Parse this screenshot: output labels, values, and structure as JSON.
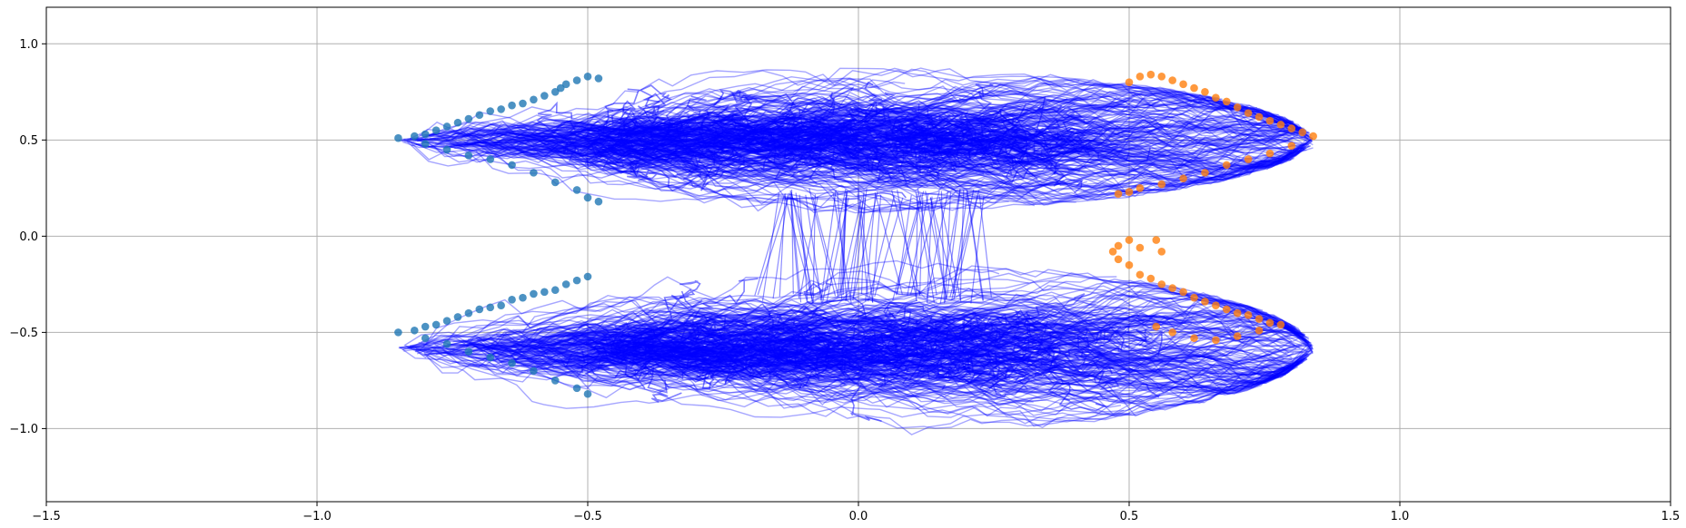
{
  "chart_data": {
    "type": "scatter",
    "title": "",
    "xlabel": "",
    "ylabel": "",
    "xlim": [
      -1.5,
      1.5
    ],
    "ylim": [
      -1.38,
      1.19
    ],
    "grid": true,
    "legend": "none",
    "x_ticks": [
      -1.5,
      -1.0,
      -0.5,
      0.0,
      0.5,
      1.0,
      1.5
    ],
    "x_tick_labels": [
      "−1.5",
      "−1.0",
      "−0.5",
      "0.0",
      "0.5",
      "1.0",
      "1.5"
    ],
    "y_ticks": [
      1.0,
      0.5,
      0.0,
      -0.5,
      -1.0
    ],
    "y_tick_labels": [
      "1.0",
      "0.5",
      "0.0",
      "−0.5",
      "−1.0"
    ],
    "colors": {
      "trajectories": "#0000ff",
      "start_points": "#1f77b4",
      "end_points": "#ff7f0e",
      "grid": "#b0b0b0",
      "axes": "#000000"
    },
    "series": [
      {
        "type": "scatter",
        "color": "#1f77b4",
        "points": [
          [
            -0.85,
            0.51
          ],
          [
            -0.82,
            0.52
          ],
          [
            -0.8,
            0.53
          ],
          [
            -0.78,
            0.55
          ],
          [
            -0.76,
            0.57
          ],
          [
            -0.74,
            0.59
          ],
          [
            -0.72,
            0.61
          ],
          [
            -0.7,
            0.63
          ],
          [
            -0.68,
            0.65
          ],
          [
            -0.66,
            0.66
          ],
          [
            -0.64,
            0.68
          ],
          [
            -0.62,
            0.69
          ],
          [
            -0.6,
            0.71
          ],
          [
            -0.58,
            0.73
          ],
          [
            -0.56,
            0.75
          ],
          [
            -0.55,
            0.77
          ],
          [
            -0.54,
            0.79
          ],
          [
            -0.52,
            0.81
          ],
          [
            -0.5,
            0.83
          ],
          [
            -0.48,
            0.82
          ],
          [
            -0.8,
            0.48
          ],
          [
            -0.76,
            0.45
          ],
          [
            -0.72,
            0.42
          ],
          [
            -0.68,
            0.4
          ],
          [
            -0.64,
            0.37
          ],
          [
            -0.6,
            0.33
          ],
          [
            -0.56,
            0.28
          ],
          [
            -0.52,
            0.24
          ],
          [
            -0.5,
            0.2
          ],
          [
            -0.48,
            0.18
          ],
          [
            -0.85,
            -0.5
          ],
          [
            -0.82,
            -0.49
          ],
          [
            -0.8,
            -0.47
          ],
          [
            -0.78,
            -0.46
          ],
          [
            -0.76,
            -0.44
          ],
          [
            -0.74,
            -0.42
          ],
          [
            -0.72,
            -0.4
          ],
          [
            -0.7,
            -0.38
          ],
          [
            -0.68,
            -0.37
          ],
          [
            -0.66,
            -0.36
          ],
          [
            -0.64,
            -0.33
          ],
          [
            -0.62,
            -0.32
          ],
          [
            -0.6,
            -0.3
          ],
          [
            -0.58,
            -0.29
          ],
          [
            -0.56,
            -0.28
          ],
          [
            -0.54,
            -0.25
          ],
          [
            -0.52,
            -0.23
          ],
          [
            -0.5,
            -0.21
          ],
          [
            -0.8,
            -0.53
          ],
          [
            -0.76,
            -0.56
          ],
          [
            -0.72,
            -0.6
          ],
          [
            -0.68,
            -0.63
          ],
          [
            -0.64,
            -0.66
          ],
          [
            -0.6,
            -0.7
          ],
          [
            -0.56,
            -0.75
          ],
          [
            -0.52,
            -0.79
          ],
          [
            -0.5,
            -0.82
          ]
        ]
      },
      {
        "type": "scatter",
        "color": "#ff7f0e",
        "points": [
          [
            0.84,
            0.52
          ],
          [
            0.82,
            0.54
          ],
          [
            0.8,
            0.56
          ],
          [
            0.78,
            0.58
          ],
          [
            0.76,
            0.6
          ],
          [
            0.74,
            0.62
          ],
          [
            0.72,
            0.64
          ],
          [
            0.7,
            0.67
          ],
          [
            0.68,
            0.7
          ],
          [
            0.66,
            0.72
          ],
          [
            0.64,
            0.75
          ],
          [
            0.62,
            0.77
          ],
          [
            0.6,
            0.79
          ],
          [
            0.58,
            0.81
          ],
          [
            0.56,
            0.83
          ],
          [
            0.54,
            0.84
          ],
          [
            0.52,
            0.83
          ],
          [
            0.5,
            0.8
          ],
          [
            0.8,
            0.47
          ],
          [
            0.76,
            0.43
          ],
          [
            0.72,
            0.4
          ],
          [
            0.68,
            0.37
          ],
          [
            0.64,
            0.33
          ],
          [
            0.6,
            0.3
          ],
          [
            0.56,
            0.27
          ],
          [
            0.52,
            0.25
          ],
          [
            0.5,
            0.23
          ],
          [
            0.48,
            0.22
          ],
          [
            0.78,
            -0.46
          ],
          [
            0.76,
            -0.45
          ],
          [
            0.74,
            -0.43
          ],
          [
            0.72,
            -0.41
          ],
          [
            0.7,
            -0.4
          ],
          [
            0.68,
            -0.38
          ],
          [
            0.66,
            -0.36
          ],
          [
            0.64,
            -0.34
          ],
          [
            0.62,
            -0.32
          ],
          [
            0.6,
            -0.29
          ],
          [
            0.58,
            -0.27
          ],
          [
            0.56,
            -0.25
          ],
          [
            0.54,
            -0.22
          ],
          [
            0.52,
            -0.2
          ],
          [
            0.5,
            -0.15
          ],
          [
            0.48,
            -0.12
          ],
          [
            0.47,
            -0.08
          ],
          [
            0.48,
            -0.05
          ],
          [
            0.5,
            -0.02
          ],
          [
            0.52,
            -0.06
          ],
          [
            0.55,
            -0.02
          ],
          [
            0.56,
            -0.08
          ],
          [
            0.74,
            -0.49
          ],
          [
            0.7,
            -0.52
          ],
          [
            0.66,
            -0.54
          ],
          [
            0.62,
            -0.53
          ],
          [
            0.58,
            -0.5
          ],
          [
            0.55,
            -0.47
          ]
        ]
      },
      {
        "type": "line",
        "color": "#0000ff",
        "alpha": 0.35,
        "description_of_density": "dense band",
        "bands": [
          {
            "x_range": [
              -0.85,
              0.84
            ],
            "y_center": 0.5,
            "y_spread": 0.33
          },
          {
            "x_range": [
              -0.85,
              0.84
            ],
            "y_center": -0.58,
            "y_spread": 0.4
          }
        ],
        "bridge": {
          "x_range": [
            -0.15,
            0.25
          ],
          "y_range": [
            -0.3,
            0.2
          ]
        }
      }
    ]
  }
}
